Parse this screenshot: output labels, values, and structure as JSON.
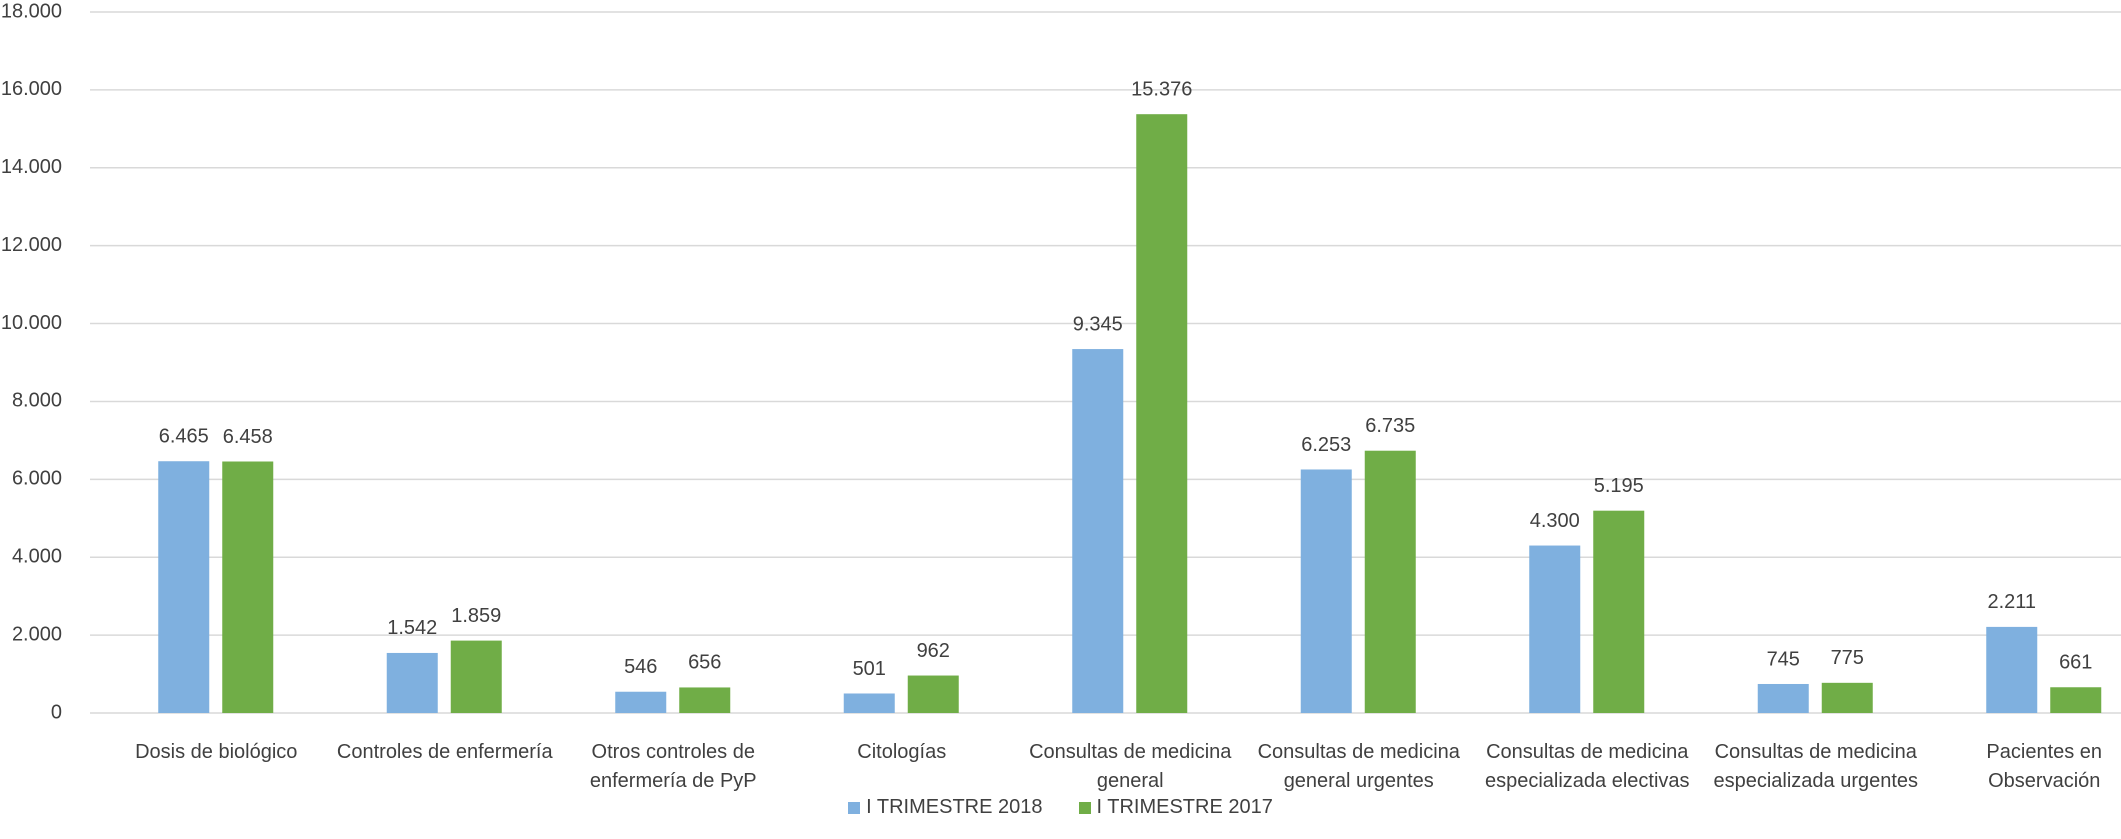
{
  "chart_data": {
    "type": "bar",
    "categories": [
      "Dosis de biológico",
      "Controles de enfermería",
      "Otros controles de enfermería de PyP",
      "Citologías",
      "Consultas de medicina general",
      "Consultas de medicina general urgentes",
      "Consultas de medicina especializada electivas",
      "Consultas de medicina especializada urgentes",
      "Pacientes en Observación"
    ],
    "series": [
      {
        "name": "I TRIMESTRE 2018",
        "color": "#7fb0df",
        "values": [
          6465,
          1542,
          546,
          501,
          9345,
          6253,
          4300,
          745,
          2211
        ],
        "value_labels": [
          "6.465",
          "1.542",
          "546",
          "501",
          "9.345",
          "6.253",
          "4.300",
          "745",
          "2.211"
        ]
      },
      {
        "name": "I TRIMESTRE 2017",
        "color": "#70ad47",
        "values": [
          6458,
          1859,
          656,
          962,
          15376,
          6735,
          5195,
          775,
          661
        ],
        "value_labels": [
          "6.458",
          "1.859",
          "656",
          "962",
          "15.376",
          "6.735",
          "5.195",
          "775",
          "661"
        ]
      }
    ],
    "ylim": [
      0,
      18000
    ],
    "yticks": [
      {
        "value": 0,
        "label": "0"
      },
      {
        "value": 2000,
        "label": "2.000"
      },
      {
        "value": 4000,
        "label": "4.000"
      },
      {
        "value": 6000,
        "label": "6.000"
      },
      {
        "value": 8000,
        "label": "8.000"
      },
      {
        "value": 10000,
        "label": "10.000"
      },
      {
        "value": 12000,
        "label": "12.000"
      },
      {
        "value": 14000,
        "label": "14.000"
      },
      {
        "value": 16000,
        "label": "16.000"
      },
      {
        "value": 18000,
        "label": "18.000"
      }
    ],
    "grid": true,
    "legend": "bottom"
  }
}
